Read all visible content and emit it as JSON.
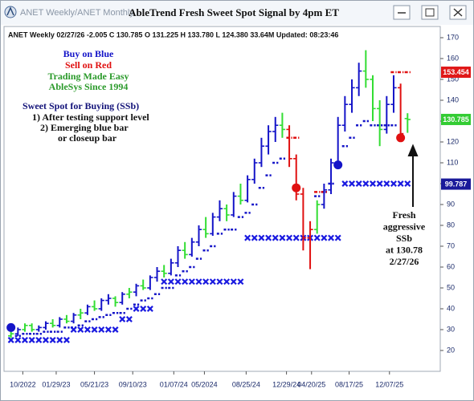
{
  "window": {
    "tabs": "ANET Weekly/ANET Monthly",
    "title": "AbleTrend Fresh Sweet Spot Signal by 4pm ET"
  },
  "chart_data": {
    "type": "ohlc",
    "header": "ANET  Weekly 02/27/26 -2.005 C 130.785 O 131.225 H 133.780 L 124.380 33.64M Updated: 08:23:46",
    "palette": {
      "b": "#1414c8",
      "g": "#33dd33",
      "r": "#e01010"
    },
    "bars": [
      [
        27,
        29,
        26,
        28
      ],
      [
        28,
        31,
        27,
        30
      ],
      [
        30,
        33,
        29,
        32
      ],
      [
        32,
        33,
        29,
        30
      ],
      [
        30,
        32,
        29,
        31
      ],
      [
        31,
        34,
        30,
        33
      ],
      [
        33,
        35,
        31,
        32
      ],
      [
        32,
        36,
        31,
        35
      ],
      [
        35,
        37,
        33,
        34
      ],
      [
        34,
        38,
        33,
        37
      ],
      [
        37,
        40,
        35,
        38
      ],
      [
        38,
        42,
        37,
        41
      ],
      [
        41,
        44,
        39,
        40
      ],
      [
        40,
        45,
        39,
        44
      ],
      [
        44,
        47,
        42,
        45
      ],
      [
        45,
        46,
        41,
        43
      ],
      [
        43,
        48,
        42,
        47
      ],
      [
        47,
        50,
        45,
        48
      ],
      [
        48,
        52,
        46,
        51
      ],
      [
        51,
        54,
        49,
        50
      ],
      [
        50,
        56,
        49,
        55
      ],
      [
        55,
        60,
        53,
        58
      ],
      [
        58,
        61,
        55,
        57
      ],
      [
        57,
        64,
        56,
        62
      ],
      [
        62,
        70,
        60,
        68
      ],
      [
        68,
        72,
        64,
        66
      ],
      [
        66,
        74,
        65,
        72
      ],
      [
        72,
        80,
        70,
        78
      ],
      [
        78,
        84,
        74,
        76
      ],
      [
        76,
        86,
        75,
        84
      ],
      [
        84,
        92,
        82,
        88
      ],
      [
        88,
        90,
        82,
        85
      ],
      [
        85,
        96,
        84,
        94
      ],
      [
        94,
        100,
        90,
        92
      ],
      [
        92,
        104,
        91,
        102
      ],
      [
        102,
        112,
        100,
        110
      ],
      [
        110,
        122,
        108,
        118
      ],
      [
        118,
        128,
        114,
        125
      ],
      [
        125,
        132,
        120,
        128
      ],
      [
        128,
        134,
        122,
        126
      ],
      [
        126,
        128,
        108,
        112
      ],
      [
        112,
        114,
        92,
        95
      ],
      [
        95,
        98,
        68,
        74
      ],
      [
        74,
        82,
        59,
        78
      ],
      [
        78,
        92,
        76,
        90
      ],
      [
        90,
        100,
        88,
        97
      ],
      [
        97,
        112,
        95,
        110
      ],
      [
        110,
        132,
        108,
        128
      ],
      [
        128,
        142,
        125,
        138
      ],
      [
        138,
        150,
        134,
        146
      ],
      [
        146,
        158,
        142,
        154
      ],
      [
        154,
        164,
        146,
        150
      ],
      [
        150,
        152,
        130,
        136
      ],
      [
        136,
        140,
        118,
        126
      ],
      [
        126,
        142,
        124,
        138
      ],
      [
        138,
        152,
        134,
        146
      ],
      [
        146,
        148,
        120,
        124
      ],
      [
        131.225,
        133.78,
        124.38,
        130.785
      ]
    ],
    "bar_colors": [
      "g",
      "b",
      "g",
      "g",
      "b",
      "b",
      "g",
      "b",
      "g",
      "b",
      "g",
      "b",
      "g",
      "b",
      "b",
      "g",
      "b",
      "g",
      "b",
      "g",
      "b",
      "b",
      "g",
      "b",
      "b",
      "g",
      "b",
      "b",
      "g",
      "b",
      "b",
      "g",
      "b",
      "g",
      "b",
      "b",
      "b",
      "b",
      "b",
      "g",
      "r",
      "r",
      "r",
      "r",
      "g",
      "b",
      "b",
      "b",
      "b",
      "b",
      "b",
      "g",
      "g",
      "g",
      "b",
      "b",
      "r",
      "g"
    ],
    "ssb": [
      25,
      25,
      25,
      25,
      25,
      25,
      25,
      25,
      25,
      30,
      30,
      30,
      30,
      30,
      30,
      30,
      35,
      35,
      40,
      40,
      40,
      null,
      53,
      53,
      53,
      53,
      53,
      53,
      53,
      53,
      53,
      53,
      53,
      53,
      74,
      74,
      74,
      74,
      74,
      74,
      74,
      74,
      74,
      74,
      74,
      74,
      74,
      74,
      100,
      100,
      100,
      100,
      100,
      100,
      100,
      100,
      100,
      100
    ],
    "support": [
      null,
      27,
      28,
      28,
      28,
      29,
      29,
      29,
      31,
      31,
      32,
      34,
      35,
      36,
      37,
      38,
      38,
      40,
      42,
      44,
      45,
      47,
      50,
      50,
      56,
      58,
      60,
      64,
      68,
      70,
      76,
      78,
      78,
      84,
      86,
      90,
      98,
      104,
      110,
      112,
      null,
      null,
      null,
      null,
      94,
      96,
      100,
      110,
      118,
      122,
      128,
      130,
      128,
      128,
      128,
      128,
      null,
      null
    ],
    "resistance": [
      null,
      null,
      null,
      null,
      null,
      null,
      null,
      null,
      null,
      null,
      null,
      null,
      null,
      null,
      null,
      null,
      null,
      null,
      null,
      null,
      null,
      null,
      null,
      null,
      null,
      null,
      null,
      null,
      null,
      null,
      null,
      null,
      null,
      null,
      null,
      null,
      null,
      null,
      null,
      null,
      122,
      122,
      null,
      null,
      96,
      96,
      null,
      null,
      null,
      null,
      null,
      null,
      null,
      null,
      null,
      153.454,
      153.454,
      153.454
    ],
    "signals": [
      {
        "x": 0,
        "value": 31,
        "color": "#1414c8"
      },
      {
        "x": 41,
        "value": 98,
        "color": "#e01010"
      },
      {
        "x": 47,
        "value": 109,
        "color": "#1414c8"
      },
      {
        "x": 56,
        "value": 122,
        "color": "#e01010"
      }
    ],
    "price_markers": [
      {
        "value": 153.454,
        "color": "#e01818"
      },
      {
        "value": 99.787,
        "color": "#1a1a9a"
      }
    ],
    "last_color": "#33cc33",
    "xlim": [
      -1,
      61.7
    ],
    "ylim": [
      10,
      175
    ],
    "yticks": [
      20,
      30,
      40,
      50,
      60,
      70,
      80,
      90,
      100,
      110,
      120,
      130,
      140,
      150,
      160,
      170
    ],
    "xticks": [
      {
        "value": 1.7,
        "label": "10/2022"
      },
      {
        "value": 6.5,
        "label": "01/29/23"
      },
      {
        "value": 12,
        "label": "05/21/23"
      },
      {
        "value": 17.5,
        "label": "09/10/23"
      },
      {
        "value": 23.4,
        "label": "01/07/24"
      },
      {
        "value": 27.8,
        "label": "05/2024"
      },
      {
        "value": 33.8,
        "label": "08/25/24"
      },
      {
        "value": 39.6,
        "label": "12/29/24"
      },
      {
        "value": 43.2,
        "label": "04/20/25"
      },
      {
        "value": 48.6,
        "label": "08/17/25"
      },
      {
        "value": 54.4,
        "label": "12/07/25"
      }
    ],
    "annotations": [
      {
        "text": "Buy on Blue",
        "color": "#1414c8"
      },
      {
        "text": "Sell on Red",
        "color": "#e01010"
      },
      {
        "text": "Trading Made Easy",
        "color": "#2a9a2a"
      },
      {
        "text": "AbleSys Since 1994",
        "color": "#2a9a2a"
      },
      {
        "text": "Sweet Spot for Buying (SSb)",
        "color": "#14147a"
      },
      {
        "text": "1) After testing support level",
        "color": "#111111"
      },
      {
        "text": "2) Emerging blue bar",
        "color": "#111111"
      },
      {
        "text": "or closeup bar",
        "color": "#111111"
      }
    ],
    "callout": [
      "Fresh",
      "aggressive",
      "SSb",
      "at 130.78",
      "2/27/26"
    ]
  }
}
